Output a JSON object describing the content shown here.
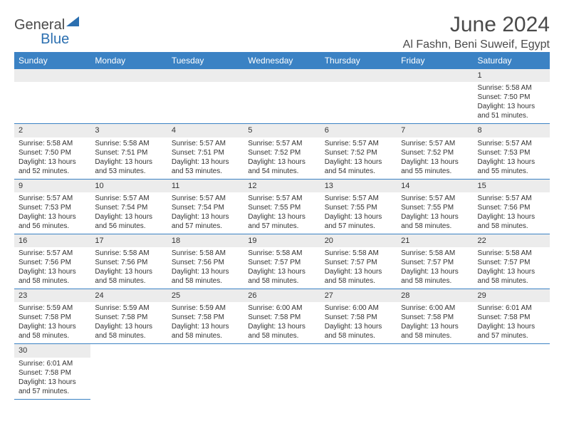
{
  "logo": {
    "general": "General",
    "blue": "Blue"
  },
  "header": {
    "month_title": "June 2024",
    "location": "Al Fashn, Beni Suweif, Egypt"
  },
  "colors": {
    "header_bg": "#3b82c4",
    "header_text": "#ffffff",
    "daynum_bg": "#ececec",
    "border": "#3b82c4",
    "title_text": "#4a4a4a"
  },
  "weekdays": [
    "Sunday",
    "Monday",
    "Tuesday",
    "Wednesday",
    "Thursday",
    "Friday",
    "Saturday"
  ],
  "weeks": [
    [
      null,
      null,
      null,
      null,
      null,
      null,
      {
        "n": "1",
        "sr": "Sunrise: 5:58 AM",
        "ss": "Sunset: 7:50 PM",
        "dl": "Daylight: 13 hours and 51 minutes."
      }
    ],
    [
      {
        "n": "2",
        "sr": "Sunrise: 5:58 AM",
        "ss": "Sunset: 7:50 PM",
        "dl": "Daylight: 13 hours and 52 minutes."
      },
      {
        "n": "3",
        "sr": "Sunrise: 5:58 AM",
        "ss": "Sunset: 7:51 PM",
        "dl": "Daylight: 13 hours and 53 minutes."
      },
      {
        "n": "4",
        "sr": "Sunrise: 5:57 AM",
        "ss": "Sunset: 7:51 PM",
        "dl": "Daylight: 13 hours and 53 minutes."
      },
      {
        "n": "5",
        "sr": "Sunrise: 5:57 AM",
        "ss": "Sunset: 7:52 PM",
        "dl": "Daylight: 13 hours and 54 minutes."
      },
      {
        "n": "6",
        "sr": "Sunrise: 5:57 AM",
        "ss": "Sunset: 7:52 PM",
        "dl": "Daylight: 13 hours and 54 minutes."
      },
      {
        "n": "7",
        "sr": "Sunrise: 5:57 AM",
        "ss": "Sunset: 7:52 PM",
        "dl": "Daylight: 13 hours and 55 minutes."
      },
      {
        "n": "8",
        "sr": "Sunrise: 5:57 AM",
        "ss": "Sunset: 7:53 PM",
        "dl": "Daylight: 13 hours and 55 minutes."
      }
    ],
    [
      {
        "n": "9",
        "sr": "Sunrise: 5:57 AM",
        "ss": "Sunset: 7:53 PM",
        "dl": "Daylight: 13 hours and 56 minutes."
      },
      {
        "n": "10",
        "sr": "Sunrise: 5:57 AM",
        "ss": "Sunset: 7:54 PM",
        "dl": "Daylight: 13 hours and 56 minutes."
      },
      {
        "n": "11",
        "sr": "Sunrise: 5:57 AM",
        "ss": "Sunset: 7:54 PM",
        "dl": "Daylight: 13 hours and 57 minutes."
      },
      {
        "n": "12",
        "sr": "Sunrise: 5:57 AM",
        "ss": "Sunset: 7:55 PM",
        "dl": "Daylight: 13 hours and 57 minutes."
      },
      {
        "n": "13",
        "sr": "Sunrise: 5:57 AM",
        "ss": "Sunset: 7:55 PM",
        "dl": "Daylight: 13 hours and 57 minutes."
      },
      {
        "n": "14",
        "sr": "Sunrise: 5:57 AM",
        "ss": "Sunset: 7:55 PM",
        "dl": "Daylight: 13 hours and 58 minutes."
      },
      {
        "n": "15",
        "sr": "Sunrise: 5:57 AM",
        "ss": "Sunset: 7:56 PM",
        "dl": "Daylight: 13 hours and 58 minutes."
      }
    ],
    [
      {
        "n": "16",
        "sr": "Sunrise: 5:57 AM",
        "ss": "Sunset: 7:56 PM",
        "dl": "Daylight: 13 hours and 58 minutes."
      },
      {
        "n": "17",
        "sr": "Sunrise: 5:58 AM",
        "ss": "Sunset: 7:56 PM",
        "dl": "Daylight: 13 hours and 58 minutes."
      },
      {
        "n": "18",
        "sr": "Sunrise: 5:58 AM",
        "ss": "Sunset: 7:56 PM",
        "dl": "Daylight: 13 hours and 58 minutes."
      },
      {
        "n": "19",
        "sr": "Sunrise: 5:58 AM",
        "ss": "Sunset: 7:57 PM",
        "dl": "Daylight: 13 hours and 58 minutes."
      },
      {
        "n": "20",
        "sr": "Sunrise: 5:58 AM",
        "ss": "Sunset: 7:57 PM",
        "dl": "Daylight: 13 hours and 58 minutes."
      },
      {
        "n": "21",
        "sr": "Sunrise: 5:58 AM",
        "ss": "Sunset: 7:57 PM",
        "dl": "Daylight: 13 hours and 58 minutes."
      },
      {
        "n": "22",
        "sr": "Sunrise: 5:58 AM",
        "ss": "Sunset: 7:57 PM",
        "dl": "Daylight: 13 hours and 58 minutes."
      }
    ],
    [
      {
        "n": "23",
        "sr": "Sunrise: 5:59 AM",
        "ss": "Sunset: 7:58 PM",
        "dl": "Daylight: 13 hours and 58 minutes."
      },
      {
        "n": "24",
        "sr": "Sunrise: 5:59 AM",
        "ss": "Sunset: 7:58 PM",
        "dl": "Daylight: 13 hours and 58 minutes."
      },
      {
        "n": "25",
        "sr": "Sunrise: 5:59 AM",
        "ss": "Sunset: 7:58 PM",
        "dl": "Daylight: 13 hours and 58 minutes."
      },
      {
        "n": "26",
        "sr": "Sunrise: 6:00 AM",
        "ss": "Sunset: 7:58 PM",
        "dl": "Daylight: 13 hours and 58 minutes."
      },
      {
        "n": "27",
        "sr": "Sunrise: 6:00 AM",
        "ss": "Sunset: 7:58 PM",
        "dl": "Daylight: 13 hours and 58 minutes."
      },
      {
        "n": "28",
        "sr": "Sunrise: 6:00 AM",
        "ss": "Sunset: 7:58 PM",
        "dl": "Daylight: 13 hours and 58 minutes."
      },
      {
        "n": "29",
        "sr": "Sunrise: 6:01 AM",
        "ss": "Sunset: 7:58 PM",
        "dl": "Daylight: 13 hours and 57 minutes."
      }
    ],
    [
      {
        "n": "30",
        "sr": "Sunrise: 6:01 AM",
        "ss": "Sunset: 7:58 PM",
        "dl": "Daylight: 13 hours and 57 minutes."
      },
      null,
      null,
      null,
      null,
      null,
      null
    ]
  ]
}
